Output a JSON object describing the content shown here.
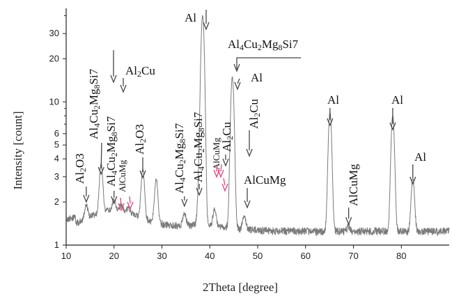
{
  "chart_data": {
    "type": "line",
    "title": "",
    "xlabel": "2Theta [degree]",
    "ylabel": "Intensity [count]",
    "xlim": [
      10,
      90
    ],
    "ylim": [
      1,
      45
    ],
    "y_scale": "log",
    "x_ticks": [
      10,
      20,
      30,
      40,
      50,
      60,
      70,
      80
    ],
    "y_ticks": [
      1,
      2,
      3,
      4,
      5,
      6,
      10,
      20,
      30
    ],
    "grid": false,
    "peaks": [
      {
        "x": 14.2,
        "y": 1.9
      },
      {
        "x": 17.3,
        "y": 3.7
      },
      {
        "x": 20.0,
        "y": 2.1
      },
      {
        "x": 21.5,
        "y": 1.9
      },
      {
        "x": 23.0,
        "y": 1.8
      },
      {
        "x": 26.0,
        "y": 3.4
      },
      {
        "x": 28.8,
        "y": 2.9
      },
      {
        "x": 34.7,
        "y": 1.65
      },
      {
        "x": 37.8,
        "y": 2.5
      },
      {
        "x": 38.5,
        "y": 40
      },
      {
        "x": 41.0,
        "y": 1.8
      },
      {
        "x": 44.7,
        "y": 15
      },
      {
        "x": 47.2,
        "y": 1.6
      },
      {
        "x": 65.1,
        "y": 8.5
      },
      {
        "x": 69.0,
        "y": 1.35
      },
      {
        "x": 78.2,
        "y": 8.0
      },
      {
        "x": 82.4,
        "y": 2.9
      }
    ],
    "annotations": [
      {
        "text": "Al2O3",
        "x": 14.2,
        "y_tip": 2.0
      },
      {
        "text": "Al4Cu2Mg8Si7",
        "x": 17.3,
        "y_tip": 4.0
      },
      {
        "text": "Al2Cu",
        "x": 21.8,
        "y_tip": 14.0
      },
      {
        "text": "Al4Cu2Mg8Si7",
        "x": 20.0,
        "y_tip": 2.1
      },
      {
        "text": "AlCuMg",
        "x": 22.0,
        "y_tip": 1.9
      },
      {
        "text": "Al2O3",
        "x": 26.0,
        "y_tip": 3.5
      },
      {
        "text": "Al4Cu2Mg8Si7",
        "x": 34.7,
        "y_tip": 1.7
      },
      {
        "text": "Al4Cu2Mg8Si7",
        "x": 37.8,
        "y_tip": 2.5
      },
      {
        "text": "Al",
        "x": 38.5,
        "y_tip": 41
      },
      {
        "text": "AlCuMg",
        "x": 41.0,
        "y_tip": 2.8
      },
      {
        "text": "Al2Cu",
        "x": 42.5,
        "y_tip": 4.2
      },
      {
        "text": "Al4Cu2Mg8Si7",
        "x": 44.7,
        "y_tip": 15
      },
      {
        "text": "Al",
        "x": 44.9,
        "y_tip": 15
      },
      {
        "text": "Al2Cu",
        "x": 46.8,
        "y_tip": 5.2
      },
      {
        "text": "AlCuMg",
        "x": 47.2,
        "y_tip": 1.65
      },
      {
        "text": "Al",
        "x": 65.1,
        "y_tip": 8.5
      },
      {
        "text": "AlCuMg",
        "x": 69.0,
        "y_tip": 1.4
      },
      {
        "text": "Al",
        "x": 78.2,
        "y_tip": 8.0
      },
      {
        "text": "Al",
        "x": 82.4,
        "y_tip": 3.0
      }
    ]
  },
  "labels": {
    "al2o3_a": {
      "base": "Al",
      "sub": "2",
      "tail": "O3"
    },
    "al2o3_b": {
      "base": "Al",
      "sub": "2",
      "tail": "O3"
    },
    "al4cu2mg8si7": {
      "p1": "Al",
      "s1": "4",
      "p2": "Cu",
      "s2": "2",
      "p3": "Mg",
      "s3": "8",
      "p4": "Si7"
    },
    "al2cu": {
      "base": "Al",
      "sub": "2",
      "tail": "Cu"
    },
    "alcumg": "AlCuMg",
    "al": "Al"
  },
  "colors": {
    "line": "#7a7a7a",
    "arrow": "#444444",
    "red_arrow": "#e0457b"
  }
}
